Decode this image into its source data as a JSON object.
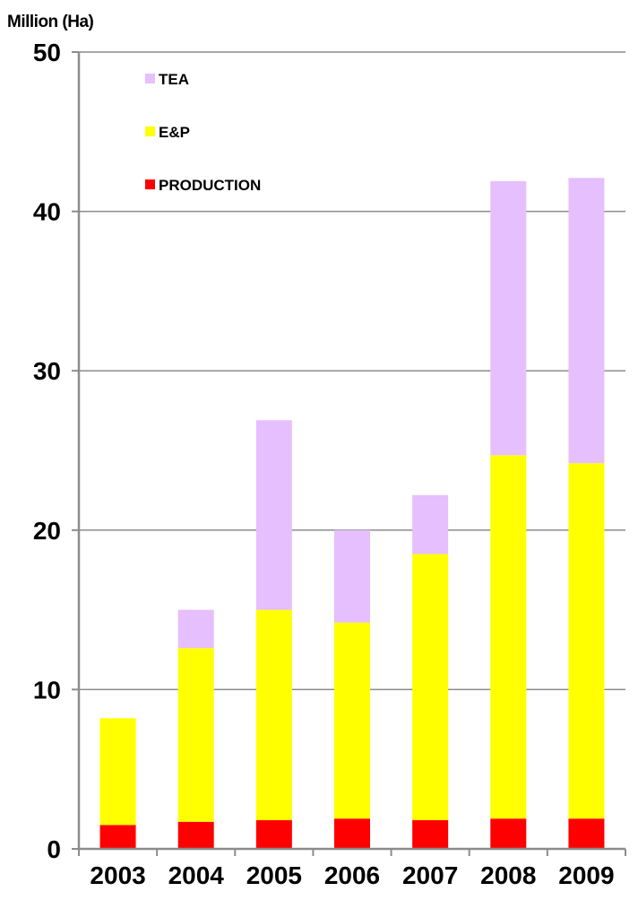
{
  "chart_data": {
    "type": "bar",
    "stacked": true,
    "ylabel": "Million (Ha)",
    "xlabel": "",
    "ylim": [
      0,
      50
    ],
    "yticks": [
      0,
      10,
      20,
      30,
      40,
      50
    ],
    "grid": true,
    "legend_position": "top-left",
    "categories": [
      "2003",
      "2004",
      "2005",
      "2006",
      "2007",
      "2008",
      "2009"
    ],
    "series": [
      {
        "name": "PRODUCTION",
        "color": "#ff0000",
        "values": [
          1.5,
          1.7,
          1.8,
          1.9,
          1.8,
          1.9,
          1.9
        ]
      },
      {
        "name": "E&P",
        "color": "#ffff00",
        "values": [
          6.7,
          10.9,
          13.2,
          12.3,
          16.7,
          22.8,
          22.3
        ]
      },
      {
        "name": "TEA",
        "color": "#e6bfff",
        "values": [
          0,
          2.4,
          11.9,
          5.8,
          3.7,
          17.2,
          17.9
        ]
      }
    ],
    "legend_order": [
      "TEA",
      "E&P",
      "PRODUCTION"
    ]
  }
}
